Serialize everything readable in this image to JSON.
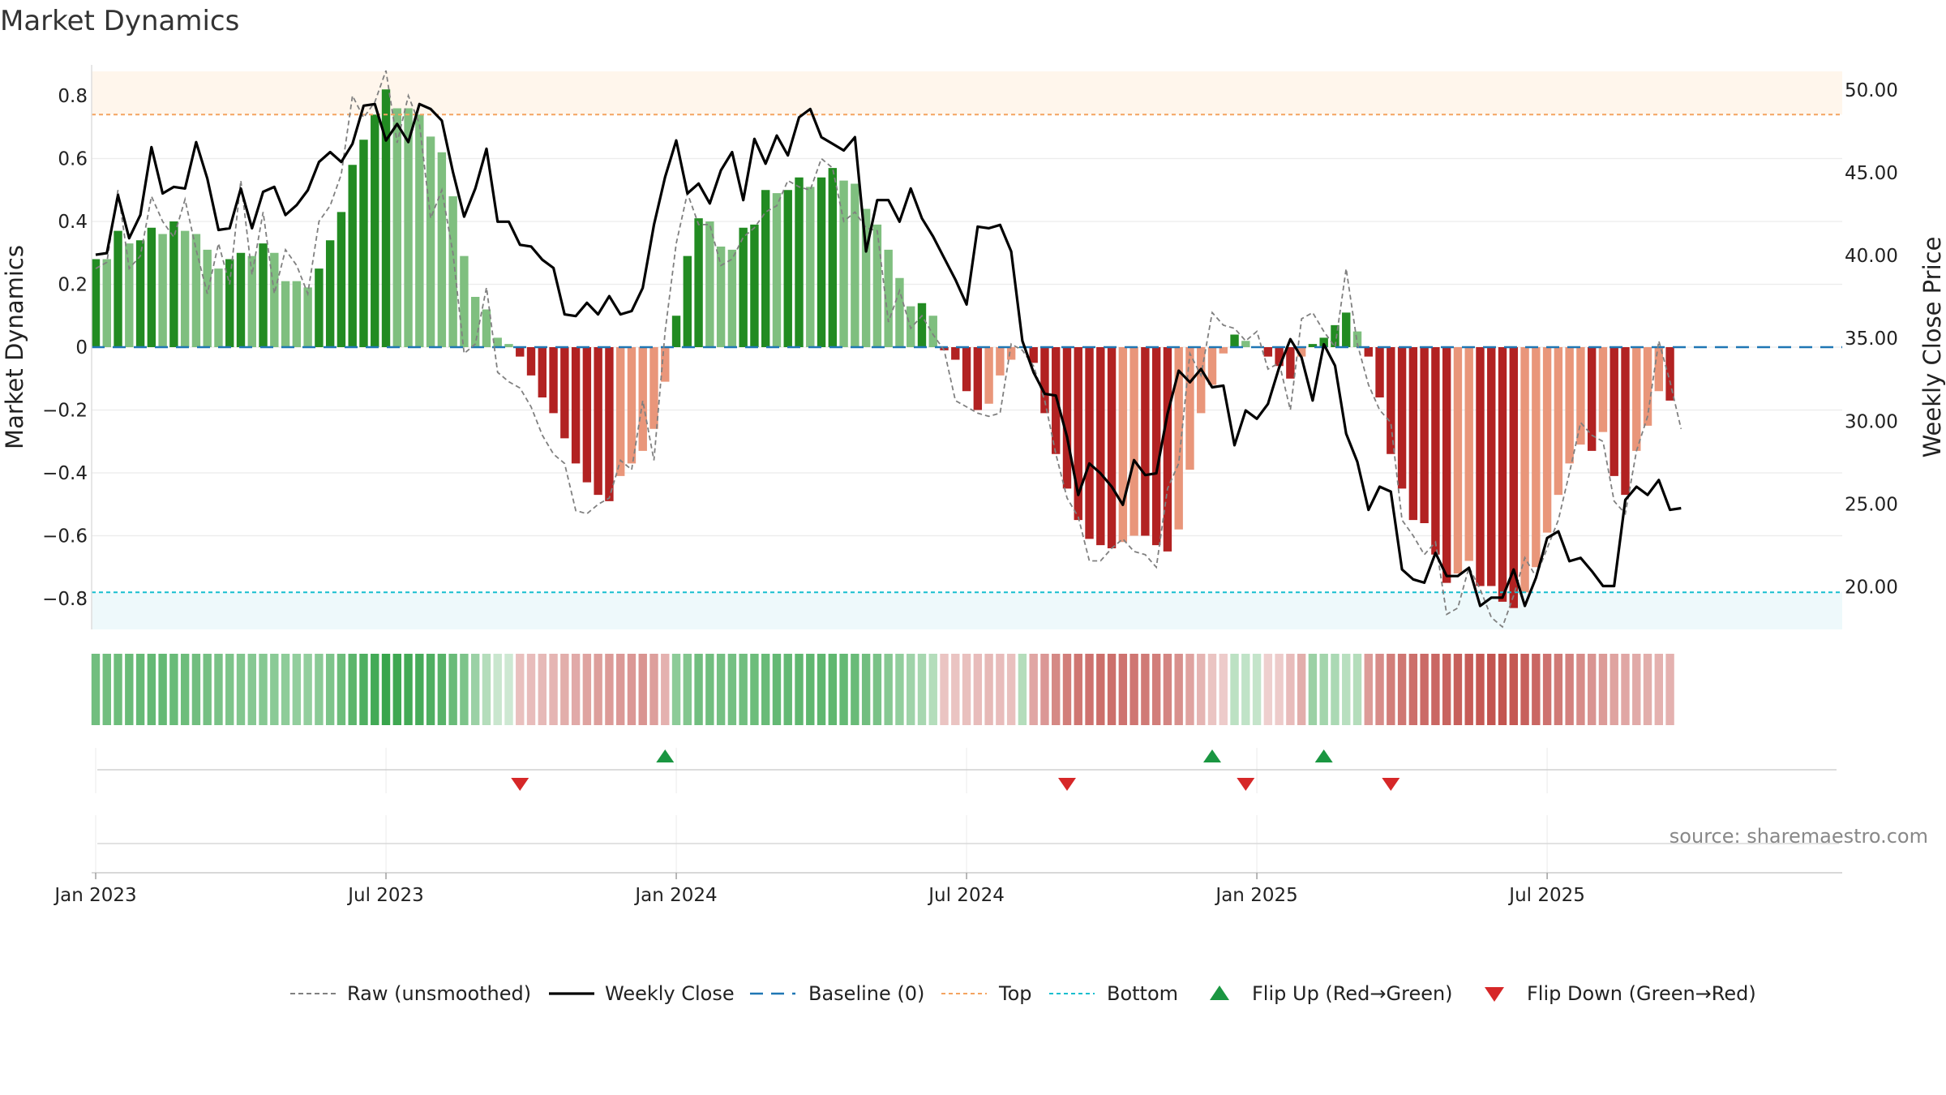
{
  "page": {
    "title": "Market Dynamics"
  },
  "chart_data": {
    "type": "bar",
    "title": "Market Dynamics",
    "ylabel_left": "Market Dynamics",
    "ylabel_right": "Weekly Close Price",
    "ylim_left": [
      -0.9,
      0.9
    ],
    "ylim_right": [
      17.0,
      51.5
    ],
    "yticks_left": [
      {
        "v": 0.8,
        "t": "0.8"
      },
      {
        "v": 0.6,
        "t": "0.6"
      },
      {
        "v": 0.4,
        "t": "0.4"
      },
      {
        "v": 0.2,
        "t": "0.2"
      },
      {
        "v": 0,
        "t": "0"
      },
      {
        "v": -0.2,
        "t": "−0.2"
      },
      {
        "v": -0.4,
        "t": "−0.4"
      },
      {
        "v": -0.6,
        "t": "−0.6"
      },
      {
        "v": -0.8,
        "t": "−0.8"
      }
    ],
    "yticks_right": [
      {
        "v": 50,
        "t": "50.00"
      },
      {
        "v": 45,
        "t": "45.00"
      },
      {
        "v": 40,
        "t": "40.00"
      },
      {
        "v": 35,
        "t": "35.00"
      },
      {
        "v": 30,
        "t": "30.00"
      },
      {
        "v": 25,
        "t": "25.00"
      },
      {
        "v": 20,
        "t": "20.00"
      }
    ],
    "x_start": "2023-01-02",
    "x_ticks": [
      {
        "label": "Jan 2023",
        "week": 1
      },
      {
        "label": "Jul 2023",
        "week": 27
      },
      {
        "label": "Jan 2024",
        "week": 53
      },
      {
        "label": "Jul 2024",
        "week": 79
      },
      {
        "label": "Jan 2025",
        "week": 105
      },
      {
        "label": "Jul 2025",
        "week": 131
      }
    ],
    "top_line": 0.74,
    "bottom_line": -0.78,
    "series": [
      {
        "name": "Market Dynamics",
        "values": [
          0.28,
          0.28,
          0.37,
          0.33,
          0.34,
          0.38,
          0.36,
          0.4,
          0.37,
          0.36,
          0.31,
          0.25,
          0.28,
          0.3,
          0.29,
          0.33,
          0.3,
          0.21,
          0.21,
          0.19,
          0.25,
          0.34,
          0.43,
          0.58,
          0.66,
          0.74,
          0.82,
          0.76,
          0.76,
          0.74,
          0.67,
          0.62,
          0.48,
          0.29,
          0.16,
          0.12,
          0.03,
          0.01,
          -0.03,
          -0.09,
          -0.16,
          -0.21,
          -0.29,
          -0.37,
          -0.43,
          -0.47,
          -0.49,
          -0.41,
          -0.37,
          -0.33,
          -0.26,
          -0.11,
          0.1,
          0.29,
          0.41,
          0.4,
          0.32,
          0.31,
          0.38,
          0.39,
          0.5,
          0.49,
          0.5,
          0.54,
          0.51,
          0.54,
          0.57,
          0.53,
          0.52,
          0.44,
          0.39,
          0.31,
          0.22,
          0.13,
          0.14,
          0.1,
          -0.01,
          -0.04,
          -0.14,
          -0.2,
          -0.18,
          -0.09,
          -0.04,
          0.0,
          -0.05,
          -0.21,
          -0.34,
          -0.45,
          -0.55,
          -0.61,
          -0.63,
          -0.64,
          -0.62,
          -0.6,
          -0.6,
          -0.63,
          -0.65,
          -0.58,
          -0.39,
          -0.21,
          -0.12,
          -0.02,
          0.04,
          0.02,
          0.0,
          -0.03,
          -0.06,
          -0.1,
          -0.03,
          0.01,
          0.03,
          0.07,
          0.11,
          0.05,
          -0.03,
          -0.16,
          -0.34,
          -0.45,
          -0.55,
          -0.56,
          -0.66,
          -0.75,
          -0.72,
          -0.68,
          -0.76,
          -0.76,
          -0.81,
          -0.83,
          -0.78,
          -0.7,
          -0.59,
          -0.47,
          -0.37,
          -0.31,
          -0.33,
          -0.27,
          -0.41,
          -0.47,
          -0.33,
          -0.25,
          -0.14,
          -0.17
        ]
      },
      {
        "name": "Raw (unsmoothed)",
        "values": [
          0.25,
          0.27,
          0.5,
          0.25,
          0.29,
          0.48,
          0.4,
          0.35,
          0.47,
          0.31,
          0.17,
          0.33,
          0.2,
          0.53,
          0.23,
          0.43,
          0.17,
          0.31,
          0.26,
          0.17,
          0.4,
          0.45,
          0.55,
          0.8,
          0.73,
          0.78,
          0.88,
          0.65,
          0.8,
          0.71,
          0.41,
          0.5,
          0.3,
          -0.02,
          0.01,
          0.19,
          -0.08,
          -0.11,
          -0.13,
          -0.19,
          -0.28,
          -0.34,
          -0.37,
          -0.52,
          -0.53,
          -0.5,
          -0.48,
          -0.36,
          -0.39,
          -0.17,
          -0.36,
          0.05,
          0.33,
          0.49,
          0.39,
          0.39,
          0.26,
          0.28,
          0.35,
          0.38,
          0.43,
          0.45,
          0.53,
          0.51,
          0.5,
          0.6,
          0.57,
          0.4,
          0.43,
          0.38,
          0.37,
          0.08,
          0.18,
          0.06,
          0.1,
          0.04,
          -0.01,
          -0.17,
          -0.19,
          -0.21,
          -0.22,
          -0.21,
          0.01,
          -0.01,
          -0.06,
          -0.17,
          -0.34,
          -0.48,
          -0.54,
          -0.68,
          -0.68,
          -0.64,
          -0.61,
          -0.65,
          -0.66,
          -0.7,
          -0.45,
          -0.37,
          -0.02,
          -0.09,
          0.11,
          0.07,
          0.06,
          0.02,
          0.05,
          -0.07,
          -0.05,
          -0.2,
          0.09,
          0.11,
          0.05,
          0.0,
          0.25,
          0.01,
          -0.12,
          -0.2,
          -0.24,
          -0.55,
          -0.6,
          -0.66,
          -0.62,
          -0.85,
          -0.83,
          -0.7,
          -0.77,
          -0.86,
          -0.89,
          -0.79,
          -0.67,
          -0.73,
          -0.64,
          -0.55,
          -0.4,
          -0.24,
          -0.28,
          -0.3,
          -0.49,
          -0.53,
          -0.33,
          -0.22,
          0.02,
          -0.11,
          -0.26
        ]
      },
      {
        "name": "Weekly Close",
        "values": [
          40.0,
          40.1,
          43.6,
          41.0,
          42.4,
          46.5,
          43.7,
          44.1,
          44.0,
          46.8,
          44.6,
          41.5,
          41.6,
          44.0,
          41.6,
          43.8,
          44.1,
          42.4,
          43.0,
          43.9,
          45.6,
          46.2,
          45.6,
          46.7,
          49.0,
          49.1,
          46.9,
          47.9,
          46.8,
          49.1,
          48.8,
          48.1,
          45.0,
          42.3,
          44.0,
          46.4,
          42.0,
          42.0,
          40.6,
          40.5,
          39.7,
          39.2,
          36.4,
          36.3,
          37.1,
          36.4,
          37.5,
          36.4,
          36.6,
          38.0,
          41.8,
          44.7,
          46.9,
          43.7,
          44.3,
          43.1,
          45.1,
          46.2,
          43.3,
          47.0,
          45.5,
          47.2,
          46.0,
          48.3,
          48.8,
          47.1,
          46.7,
          46.3,
          47.1,
          40.2,
          43.3,
          43.3,
          42.0,
          44.0,
          42.2,
          41.1,
          39.8,
          38.5,
          37.0,
          41.7,
          41.6,
          41.8,
          40.2,
          34.8,
          32.9,
          31.6,
          31.5,
          29.0,
          25.5,
          27.4,
          26.8,
          26.0,
          24.9,
          27.6,
          26.7,
          26.8,
          30.4,
          33.0,
          32.3,
          33.1,
          32.0,
          32.1,
          28.5,
          30.6,
          30.1,
          31.0,
          33.2,
          34.9,
          33.8,
          31.2,
          34.6,
          33.3,
          29.2,
          27.5,
          24.6,
          26.0,
          25.7,
          21.0,
          20.4,
          20.2,
          22.0,
          20.6,
          20.6,
          21.1,
          18.8,
          19.3,
          19.3,
          21.0,
          18.8,
          20.5,
          22.9,
          23.3,
          21.5,
          21.7,
          20.9,
          20.0,
          20.0,
          25.2,
          26.0,
          25.5,
          26.4,
          24.6,
          24.7
        ]
      }
    ],
    "strip_shades": [
      0.68,
      0.68,
      0.7,
      0.72,
      0.73,
      0.74,
      0.74,
      0.72,
      0.7,
      0.68,
      0.66,
      0.64,
      0.62,
      0.6,
      0.58,
      0.58,
      0.56,
      0.54,
      0.52,
      0.52,
      0.56,
      0.62,
      0.7,
      0.78,
      0.84,
      0.9,
      0.95,
      0.92,
      0.9,
      0.88,
      0.84,
      0.8,
      0.72,
      0.62,
      0.48,
      0.36,
      0.26,
      0.24,
      0.34,
      0.36,
      0.38,
      0.4,
      0.44,
      0.46,
      0.5,
      0.52,
      0.54,
      0.55,
      0.56,
      0.58,
      0.52,
      0.42,
      0.55,
      0.6,
      0.68,
      0.68,
      0.66,
      0.66,
      0.68,
      0.7,
      0.72,
      0.74,
      0.74,
      0.76,
      0.76,
      0.76,
      0.76,
      0.74,
      0.72,
      0.68,
      0.64,
      0.58,
      0.52,
      0.46,
      0.42,
      0.36,
      0.32,
      0.32,
      0.34,
      0.36,
      0.38,
      0.36,
      0.34,
      0.36,
      0.48,
      0.56,
      0.64,
      0.7,
      0.74,
      0.76,
      0.78,
      0.78,
      0.76,
      0.74,
      0.72,
      0.7,
      0.66,
      0.6,
      0.5,
      0.4,
      0.32,
      0.28,
      0.32,
      0.3,
      0.28,
      0.26,
      0.28,
      0.36,
      0.44,
      0.48,
      0.44,
      0.4,
      0.34,
      0.36,
      0.54,
      0.62,
      0.7,
      0.74,
      0.78,
      0.8,
      0.82,
      0.84,
      0.86,
      0.88,
      0.9,
      0.92,
      0.92,
      0.9,
      0.86,
      0.82,
      0.76,
      0.72,
      0.68,
      0.62,
      0.58,
      0.54,
      0.5,
      0.48,
      0.46,
      0.44,
      0.42,
      0.42,
      0.44,
      0.46
    ],
    "flip_up_weeks": [
      51,
      100,
      110
    ],
    "flip_down_weeks": [
      38,
      87,
      103,
      116
    ],
    "legend": [
      "Raw (unsmoothed)",
      "Weekly Close",
      "Baseline (0)",
      "Top",
      "Bottom",
      "Flip Up (Red→Green)",
      "Flip Down (Green→Red)"
    ],
    "legend_position": "bottom-center",
    "colors": {
      "bar_green_strong": "#228b22",
      "bar_green_light": "#7fbf7f",
      "bar_red_strong": "#b22222",
      "bar_red_light": "#e9967a",
      "raw_line": "#808080",
      "close_line": "#000000",
      "baseline": "#1f77b4",
      "top_line": "#f4a460",
      "bottom_line": "#17becf",
      "flip_up": "#1a9641",
      "flip_down": "#d62728"
    },
    "source": "source: sharemaestro.com"
  }
}
